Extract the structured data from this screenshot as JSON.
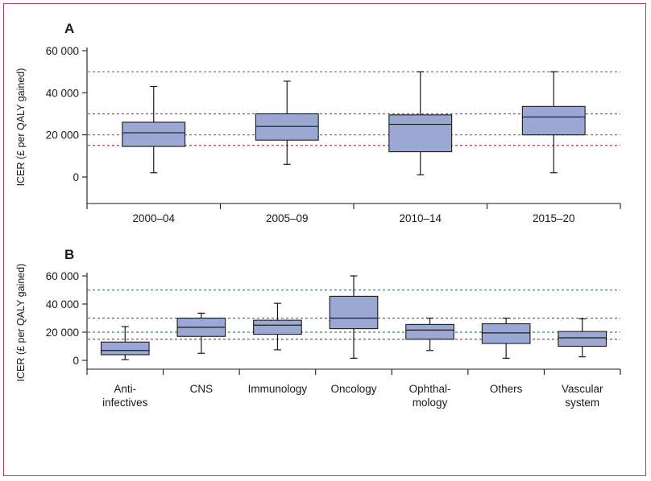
{
  "chart_data": [
    {
      "type": "box",
      "panel": "A",
      "ylabel": "ICER (£ per QALY gained)",
      "ylim": [
        -12000,
        62000
      ],
      "yticks": [
        0,
        20000,
        40000,
        60000
      ],
      "ytick_labels": [
        "0",
        "20 000",
        "40 000",
        "60 000"
      ],
      "reference_lines": [
        {
          "y": 50000,
          "color": "#2e8a5e"
        },
        {
          "y": 30000,
          "color": "#2e8a5e"
        },
        {
          "y": 20000,
          "color": "#2e8a5e"
        },
        {
          "y": 15000,
          "color": "#c0305a"
        }
      ],
      "categories": [
        "2000–04",
        "2005–09",
        "2010–14",
        "2015–20"
      ],
      "boxes": [
        {
          "min": 2000,
          "q1": 14500,
          "median": 21000,
          "q3": 26000,
          "max": 43000
        },
        {
          "min": 6000,
          "q1": 17500,
          "median": 24000,
          "q3": 30000,
          "max": 45500
        },
        {
          "min": 1000,
          "q1": 12000,
          "median": 25000,
          "q3": 29500,
          "max": 50000
        },
        {
          "min": 2000,
          "q1": 20000,
          "median": 28500,
          "q3": 33500,
          "max": 50000
        }
      ]
    },
    {
      "type": "box",
      "panel": "B",
      "ylabel": "ICER (£ per QALY gained)",
      "ylim": [
        -12000,
        62000
      ],
      "yticks": [
        0,
        20000,
        40000,
        60000
      ],
      "ytick_labels": [
        "0",
        "20 000",
        "40 000",
        "60 000"
      ],
      "reference_lines": [
        {
          "y": 50000,
          "color": "#2e8a5e"
        },
        {
          "y": 30000,
          "color": "#2e8a5e"
        },
        {
          "y": 20000,
          "color": "#2e8a5e"
        },
        {
          "y": 15000,
          "color": "#c0305a"
        }
      ],
      "categories": [
        [
          "Anti-",
          "infectives"
        ],
        [
          "CNS"
        ],
        [
          "Immunology"
        ],
        [
          "Oncology"
        ],
        [
          "Ophthal-",
          "mology"
        ],
        [
          "Others"
        ],
        [
          "Vascular",
          "system"
        ]
      ],
      "boxes": [
        {
          "min": 500,
          "q1": 4000,
          "median": 7000,
          "q3": 13000,
          "max": 24000
        },
        {
          "min": 5000,
          "q1": 17000,
          "median": 23500,
          "q3": 30000,
          "max": 33500
        },
        {
          "min": 7500,
          "q1": 18500,
          "median": 25000,
          "q3": 28500,
          "max": 40500
        },
        {
          "min": 1500,
          "q1": 22500,
          "median": 30000,
          "q3": 45500,
          "max": 60000
        },
        {
          "min": 7000,
          "q1": 15000,
          "median": 21500,
          "q3": 25500,
          "max": 30000
        },
        {
          "min": 1500,
          "q1": 12000,
          "median": 19500,
          "q3": 26000,
          "max": 30000
        },
        {
          "min": 2500,
          "q1": 10000,
          "median": 16000,
          "q3": 20500,
          "max": 29500
        }
      ]
    }
  ]
}
